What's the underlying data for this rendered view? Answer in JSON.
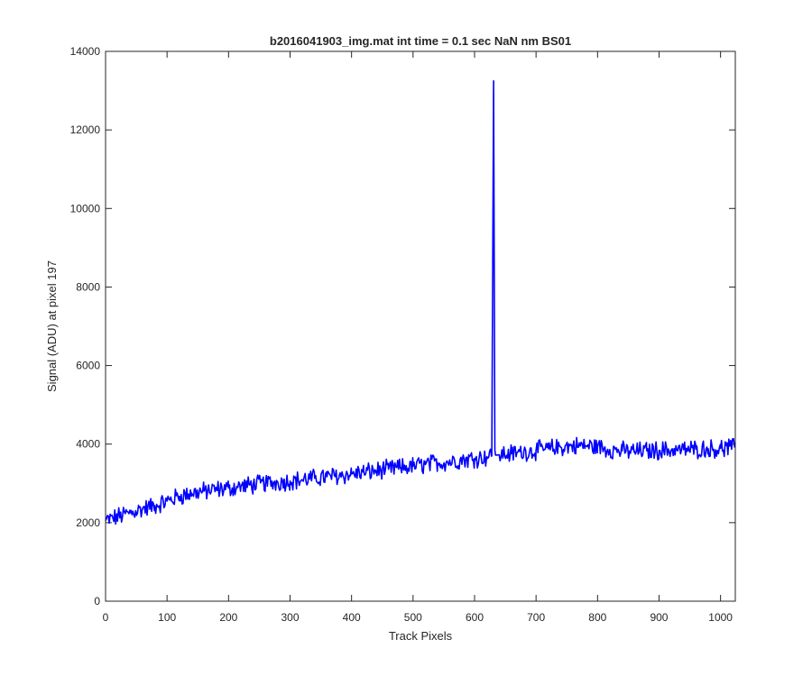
{
  "chart_data": {
    "type": "line",
    "title": "b2016041903_img.mat int time = 0.1 sec  NaN nm BS01",
    "xlabel": "Track Pixels",
    "ylabel": "Signal (ADU) at pixel 197",
    "xlim": [
      0,
      1024
    ],
    "ylim": [
      0,
      14000
    ],
    "xticks": [
      0,
      100,
      200,
      300,
      400,
      500,
      600,
      700,
      800,
      900,
      1000
    ],
    "yticks": [
      0,
      2000,
      4000,
      6000,
      8000,
      10000,
      12000,
      14000
    ],
    "grid": false,
    "legend": "none",
    "series": [
      {
        "color": "#0000ff",
        "x": [
          0,
          20,
          40,
          60,
          80,
          100,
          120,
          140,
          160,
          180,
          200,
          220,
          240,
          260,
          280,
          300,
          320,
          340,
          360,
          380,
          400,
          420,
          440,
          460,
          480,
          500,
          520,
          540,
          560,
          580,
          600,
          620,
          628,
          631,
          633,
          634,
          636,
          640,
          660,
          680,
          700,
          720,
          740,
          760,
          780,
          800,
          820,
          840,
          860,
          880,
          900,
          920,
          940,
          960,
          980,
          1000,
          1023
        ],
        "y": [
          2050,
          2150,
          2250,
          2350,
          2430,
          2550,
          2670,
          2750,
          2800,
          2840,
          2880,
          2920,
          2960,
          3000,
          3030,
          3060,
          3090,
          3130,
          3170,
          3200,
          3240,
          3280,
          3320,
          3360,
          3400,
          3440,
          3480,
          3520,
          3560,
          3600,
          3640,
          3680,
          3700,
          13250,
          3850,
          3720,
          3720,
          3730,
          3760,
          3800,
          3840,
          3880,
          3920,
          3950,
          3960,
          3930,
          3860,
          3830,
          3820,
          3830,
          3840,
          3850,
          3860,
          3870,
          3880,
          3890,
          3910
        ]
      }
    ]
  }
}
